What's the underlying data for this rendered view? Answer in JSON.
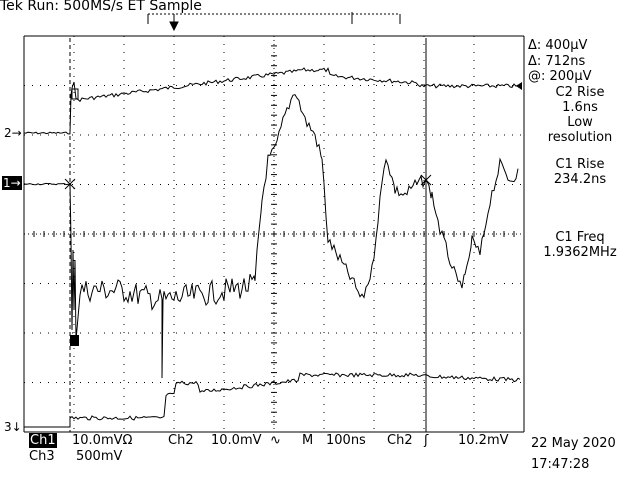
{
  "header": {
    "status": "Tek Run: 500MS/s ET Sample"
  },
  "measurements": {
    "delta_v": "Δ: 400μV",
    "delta_t": "Δ: 712ns",
    "at_v": "@: 200μV",
    "m1_label": "C2 Rise",
    "m1_value": "1.6ns",
    "m1_note1": "Low",
    "m1_note2": "resolution",
    "m2_label": "C1 Rise",
    "m2_value": "234.2ns",
    "m3_label": "C1 Freq",
    "m3_value": "1.9362MHz"
  },
  "channel_markers": {
    "ch2": "2",
    "ch1": "1",
    "ch3": "3"
  },
  "footer": {
    "ch1_label": "Ch1",
    "ch1_scale": "10.0mVΩ",
    "ch2_label": "Ch2",
    "ch2_scale": "10.0mV",
    "timebase_label": "M",
    "timebase": "100ns",
    "trigger_src": "Ch2",
    "trigger_level": "10.2mV",
    "ch3_label": "Ch3",
    "ch3_scale": "500mV",
    "date": "22 May 2020",
    "time": "17:47:28"
  },
  "colors": {
    "trace": "#000000",
    "background": "#ffffff"
  }
}
